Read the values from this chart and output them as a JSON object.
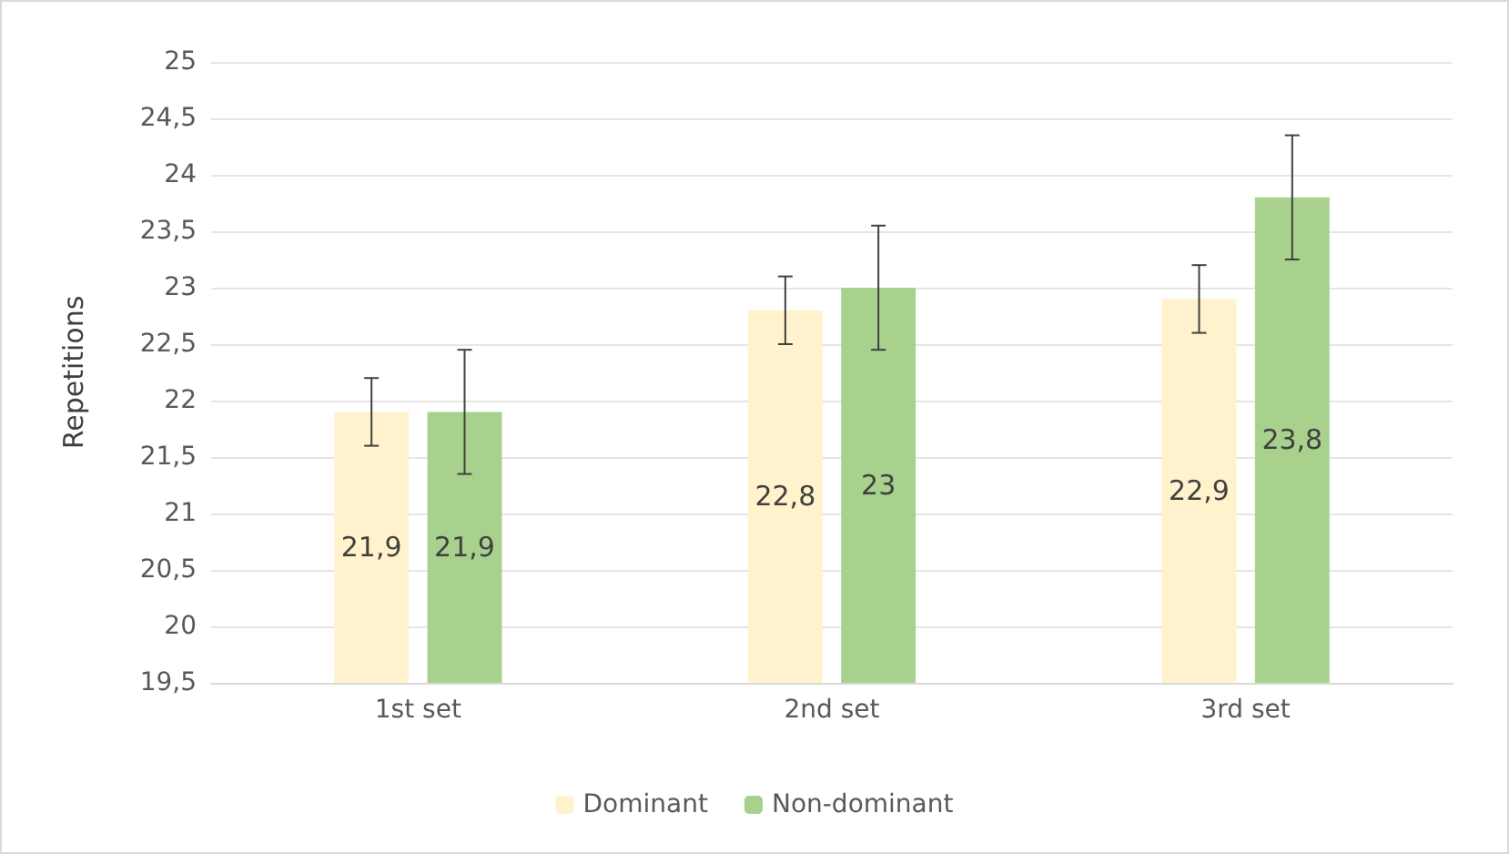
{
  "chart_data": {
    "type": "bar",
    "ylabel": "Repetitions",
    "categories": [
      "1st set",
      "2nd set",
      "3rd set"
    ],
    "series": [
      {
        "name": "Dominant",
        "color": "#fff2cc",
        "values": [
          21.9,
          22.8,
          22.9
        ],
        "errors": [
          0.3,
          0.3,
          0.3
        ],
        "value_labels": [
          "21,9",
          "22,8",
          "22,9"
        ]
      },
      {
        "name": "Non-dominant",
        "color": "#a9d18e",
        "values": [
          21.9,
          23,
          23.8
        ],
        "errors": [
          0.55,
          0.55,
          0.55
        ],
        "value_labels": [
          "21,9",
          "23",
          "23,8"
        ]
      }
    ],
    "ylim": [
      19.5,
      25
    ],
    "yticks": [
      {
        "value": 19.5,
        "label": "19,5"
      },
      20,
      {
        "value": 20.5,
        "label": "20,5"
      },
      21,
      {
        "value": 21.5,
        "label": "21,5"
      },
      22,
      {
        "value": 22.5,
        "label": "22,5"
      },
      23,
      {
        "value": 23.5,
        "label": "23,5"
      },
      24,
      {
        "value": 24.5,
        "label": "24,5"
      },
      25
    ],
    "grid": "y",
    "legend": "bottom"
  }
}
